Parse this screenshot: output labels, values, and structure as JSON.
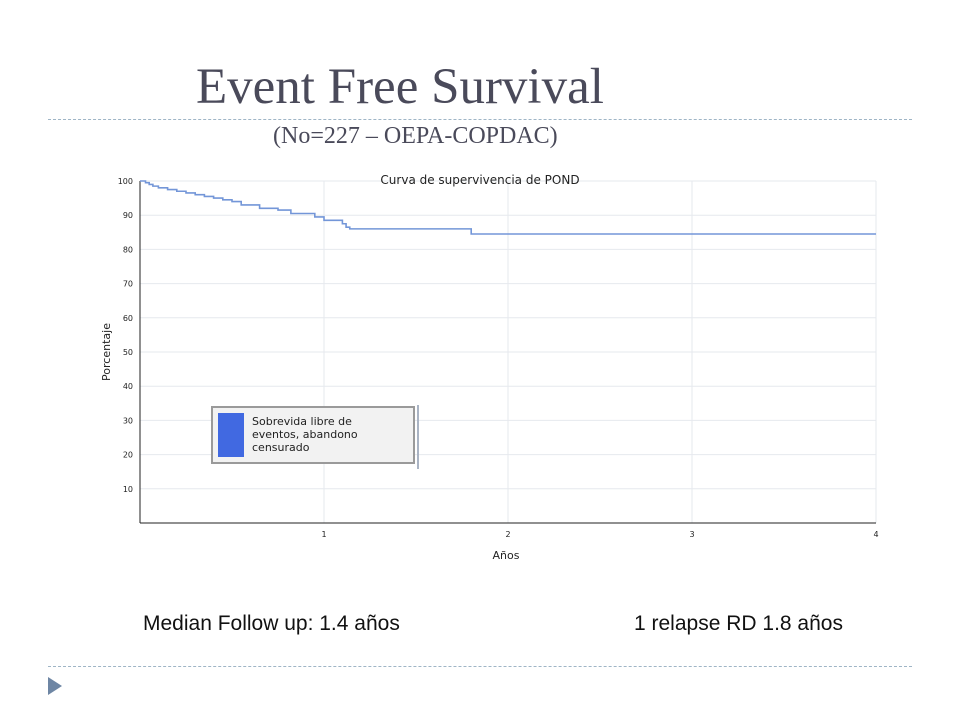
{
  "slide": {
    "title": "Event Free Survival",
    "subtitle": "(No=227 – OEPA-COPDAC)",
    "footnote_left": "Median Follow up: 1.4 años",
    "footnote_right": "1 relapse RD 1.8 años",
    "rule_color": "#9fb5c6",
    "bullet_icon": "triangle-right-icon",
    "bullet_color": "#6e86a4"
  },
  "chart_data": {
    "type": "line",
    "step": true,
    "title": "Curva de supervivencia de POND",
    "xlabel": "Años",
    "ylabel": "Porcentaje",
    "xlim": [
      0,
      4
    ],
    "ylim": [
      0,
      100
    ],
    "x_ticks": [
      1,
      2,
      3,
      4
    ],
    "x_tick_labels": [
      "1",
      "2",
      "3",
      "4"
    ],
    "y_ticks": [
      10,
      20,
      30,
      40,
      50,
      60,
      70,
      80,
      90,
      100
    ],
    "y_tick_labels": [
      "10",
      "20",
      "30",
      "40",
      "50",
      "60",
      "70",
      "80",
      "90",
      "100"
    ],
    "grid": true,
    "legend": {
      "placement": "center-left",
      "label": "Sobrevida libre de eventos, abandono censurado",
      "lines": [
        "Sobrevida libre de",
        "eventos, abandono",
        "censurado"
      ],
      "swatch_color": "#4169e1"
    },
    "series": [
      {
        "color": "#7396d8",
        "x": [
          0,
          0.03,
          0.05,
          0.07,
          0.1,
          0.15,
          0.2,
          0.25,
          0.3,
          0.35,
          0.4,
          0.45,
          0.5,
          0.55,
          0.65,
          0.75,
          0.82,
          0.95,
          1.0,
          1.1,
          1.12,
          1.14,
          1.8,
          4.0
        ],
        "y": [
          100,
          99.5,
          99,
          98.5,
          98,
          97.5,
          97,
          96.5,
          96,
          95.5,
          95,
          94.5,
          94,
          93,
          92,
          91.5,
          90.5,
          89.5,
          88.5,
          87.5,
          86.5,
          86,
          84.5,
          84.5
        ]
      }
    ]
  }
}
